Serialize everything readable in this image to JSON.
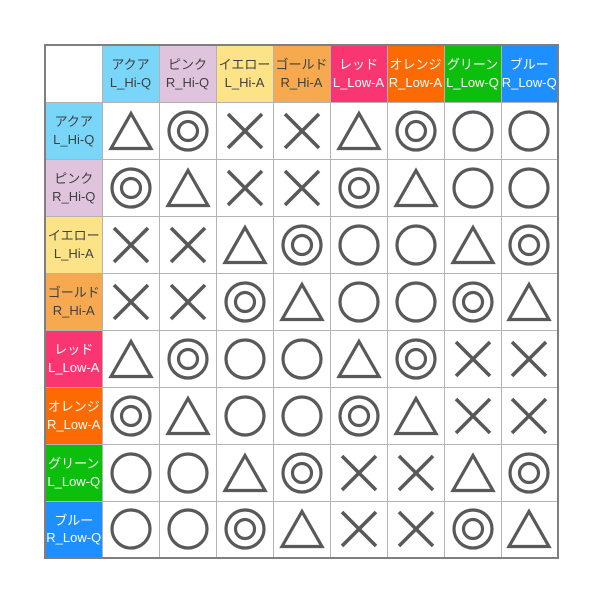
{
  "figure": {
    "description_label": "",
    "grid_line_color": "#b3b3b3",
    "outer_border_color": "#7f7f7f",
    "symbol_stroke_color": "#595959"
  },
  "categories": [
    {
      "name": "アクア",
      "code": "L_Hi-Q",
      "bg": "#7ad6f8",
      "fg": "#404040"
    },
    {
      "name": "ピンク",
      "code": "R_Hi-Q",
      "bg": "#e0c4de",
      "fg": "#404040"
    },
    {
      "name": "イエロー",
      "code": "L_Hi-A",
      "bg": "#fce388",
      "fg": "#404040"
    },
    {
      "name": "ゴールド",
      "code": "R_Hi-A",
      "bg": "#f6a94e",
      "fg": "#404040"
    },
    {
      "name": "レッド",
      "code": "L_Low-A",
      "bg": "#f93572",
      "fg": "#ffffff"
    },
    {
      "name": "オレンジ",
      "code": "R_Low-A",
      "bg": "#fb6a03",
      "fg": "#ffffff"
    },
    {
      "name": "グリーン",
      "code": "L_Low-Q",
      "bg": "#0dbf0d",
      "fg": "#ffffff"
    },
    {
      "name": "ブルー",
      "code": "R_Low-Q",
      "bg": "#1e8fff",
      "fg": "#ffffff"
    }
  ],
  "symbols": {
    "triangle": "△",
    "double_circle": "◎",
    "circle": "○",
    "cross": "×"
  },
  "chart_data": {
    "type": "table",
    "title": "",
    "row_labels": [
      "アクア L_Hi-Q",
      "ピンク R_Hi-Q",
      "イエロー L_Hi-A",
      "ゴールド R_Hi-A",
      "レッド L_Low-A",
      "オレンジ R_Low-A",
      "グリーン L_Low-Q",
      "ブルー R_Low-Q"
    ],
    "col_labels": [
      "アクア L_Hi-Q",
      "ピンク R_Hi-Q",
      "イエロー L_Hi-A",
      "ゴールド R_Hi-A",
      "レッド L_Low-A",
      "オレンジ R_Low-A",
      "グリーン L_Low-Q",
      "ブルー R_Low-Q"
    ],
    "matrix": [
      [
        "triangle",
        "double_circle",
        "cross",
        "cross",
        "triangle",
        "double_circle",
        "circle",
        "circle"
      ],
      [
        "double_circle",
        "triangle",
        "cross",
        "cross",
        "double_circle",
        "triangle",
        "circle",
        "circle"
      ],
      [
        "cross",
        "cross",
        "triangle",
        "double_circle",
        "circle",
        "circle",
        "triangle",
        "double_circle"
      ],
      [
        "cross",
        "cross",
        "double_circle",
        "triangle",
        "circle",
        "circle",
        "double_circle",
        "triangle"
      ],
      [
        "triangle",
        "double_circle",
        "circle",
        "circle",
        "triangle",
        "double_circle",
        "cross",
        "cross"
      ],
      [
        "double_circle",
        "triangle",
        "circle",
        "circle",
        "double_circle",
        "triangle",
        "cross",
        "cross"
      ],
      [
        "circle",
        "circle",
        "triangle",
        "double_circle",
        "cross",
        "cross",
        "triangle",
        "double_circle"
      ],
      [
        "circle",
        "circle",
        "double_circle",
        "triangle",
        "cross",
        "cross",
        "double_circle",
        "triangle"
      ]
    ]
  }
}
